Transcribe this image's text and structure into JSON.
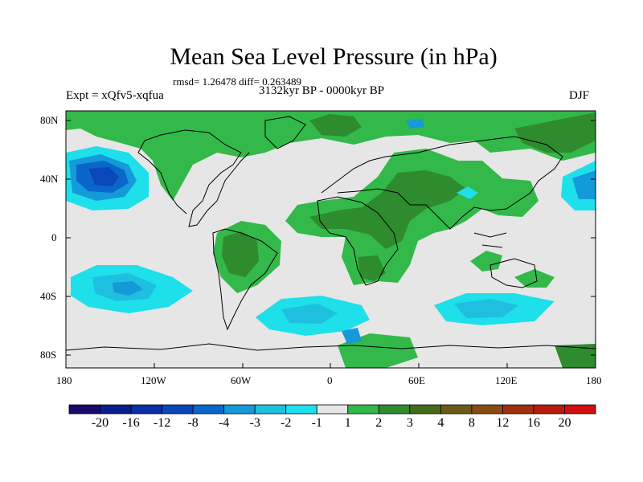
{
  "title": "Mean Sea Level Pressure (in hPa)",
  "stats": "rmsd= 1.26478 diff= 0.263489",
  "experiment": "Expt = xQfv5-xqfua",
  "period": "3132kyr BP - 0000kyr BP",
  "season": "DJF",
  "lat_ticks": [
    "80N",
    "40N",
    "0",
    "40S",
    "80S"
  ],
  "lon_ticks": [
    "180",
    "120W",
    "60W",
    "0",
    "60E",
    "120E",
    "180"
  ],
  "colorbar": {
    "labels": [
      "-20",
      "-16",
      "-12",
      "-8",
      "-4",
      "-3",
      "-2",
      "-1",
      "1",
      "2",
      "3",
      "4",
      "8",
      "12",
      "16",
      "20"
    ],
    "colors": [
      "#1a0a6e",
      "#0c1e8c",
      "#0a2fa6",
      "#0a47b8",
      "#0b66cc",
      "#149ad8",
      "#1fbfe0",
      "#1de0ea",
      "#e6e6e6",
      "#33b84a",
      "#2e8b2e",
      "#466b1d",
      "#6b5a1a",
      "#8a4a14",
      "#a02f10",
      "#b81b0c",
      "#d40e0e"
    ]
  },
  "map_colors": {
    "neutral": "#e6e6e6",
    "neg1": "#1de0ea",
    "neg2": "#1fbfe0",
    "neg3": "#149ad8",
    "neg4": "#0b66cc",
    "neg5": "#0a47b8",
    "pos1": "#33b84a",
    "pos2": "#2e8b2e",
    "pos3": "#466b1d",
    "coast": "#000000"
  }
}
